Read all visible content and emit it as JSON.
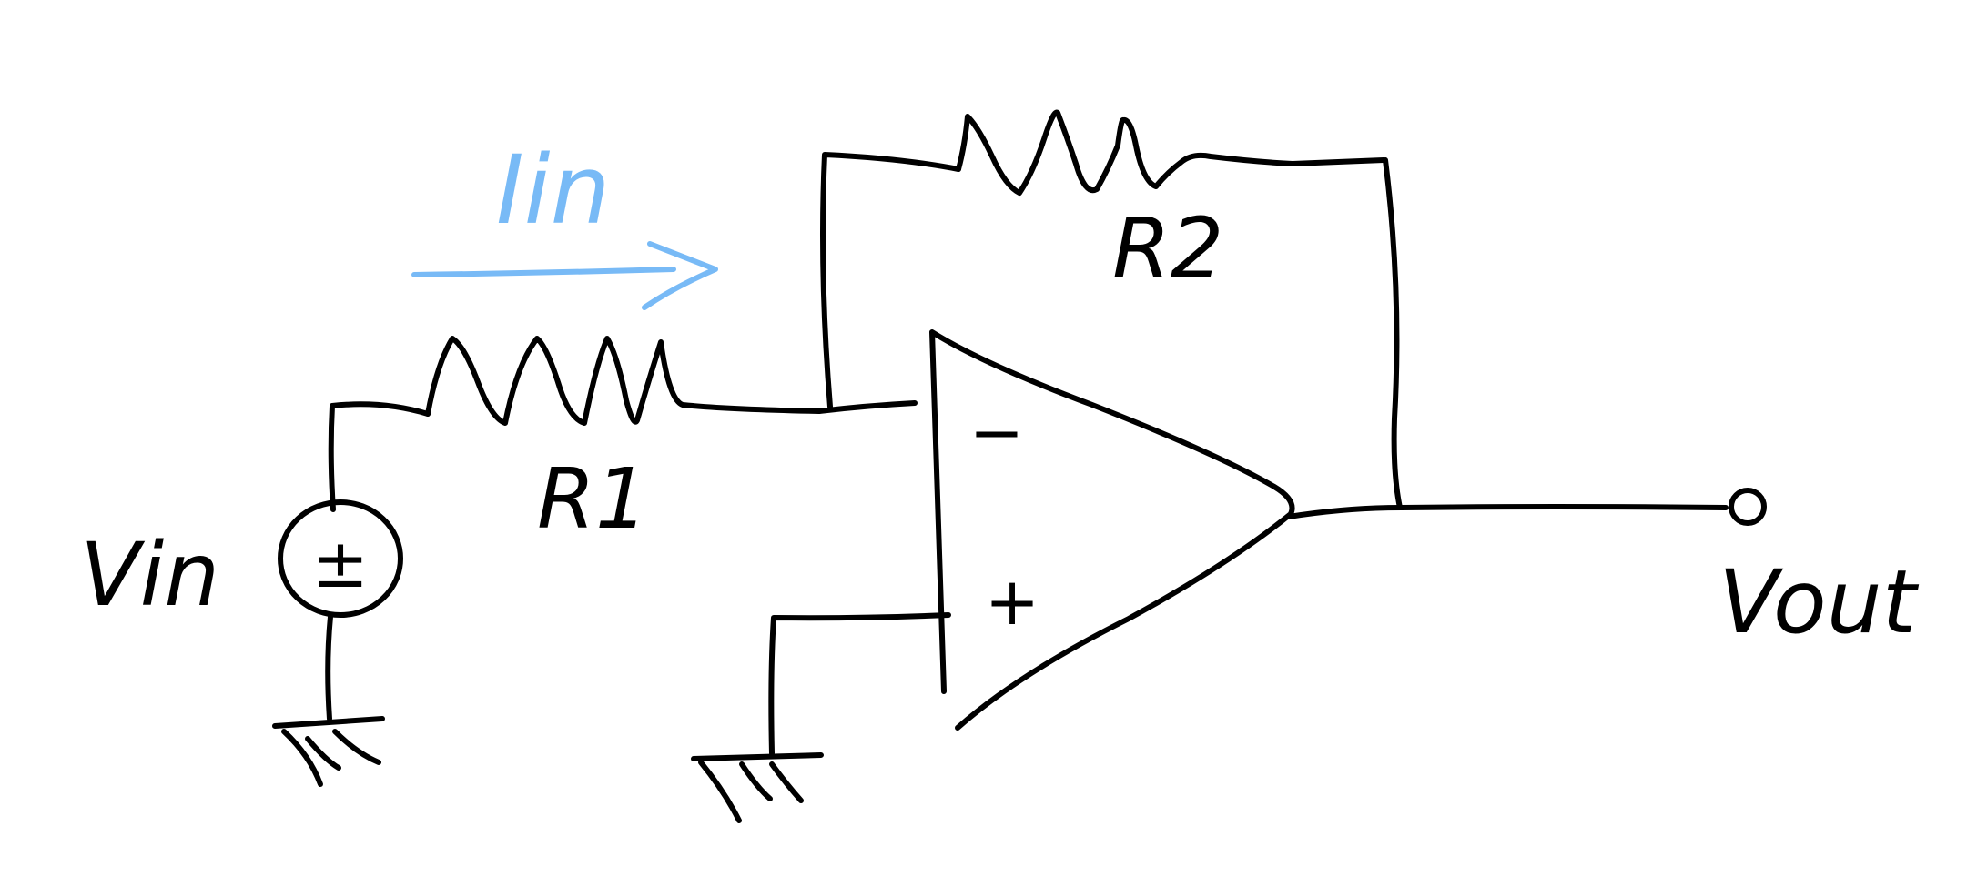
{
  "diagram": {
    "labels": {
      "source": "Vin",
      "current": "Iin",
      "resistor_in": "R1",
      "resistor_feedback": "R2",
      "output": "Vout",
      "opamp_minus": "−",
      "opamp_plus": "+",
      "source_polarity": "±"
    },
    "colors": {
      "ink": "#000000",
      "current_arrow": "#78baf6",
      "background": "#ffffff"
    }
  }
}
